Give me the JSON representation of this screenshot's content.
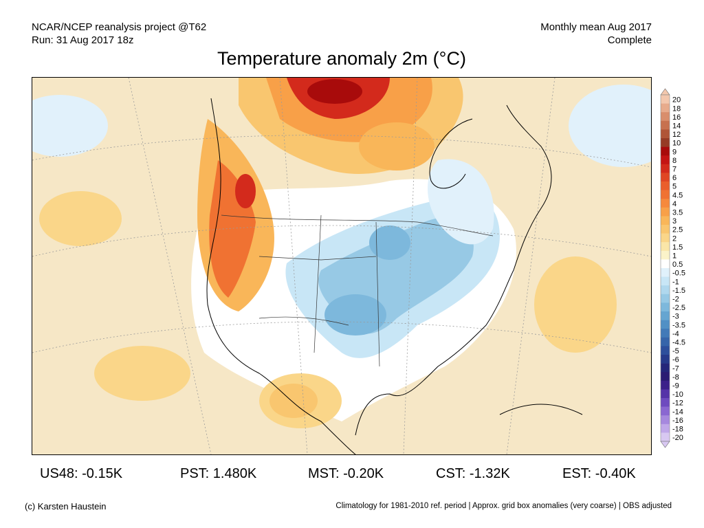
{
  "header": {
    "line1_left": "NCAR/NCEP reanalysis project @T62",
    "line2_left": "Run: 31 Aug 2017 18z",
    "line1_right": "Monthly mean Aug 2017",
    "line2_right": "Complete"
  },
  "title": "Temperature anomaly 2m (°C)",
  "colorbar": {
    "labels": [
      "20",
      "18",
      "16",
      "14",
      "12",
      "10",
      "9",
      "8",
      "7",
      "6",
      "5",
      "4.5",
      "4",
      "3.5",
      "3",
      "2.5",
      "2",
      "1.5",
      "1",
      "0.5",
      "-0.5",
      "-1",
      "-1.5",
      "-2",
      "-2.5",
      "-3",
      "-3.5",
      "-4",
      "-4.5",
      "-5",
      "-6",
      "-7",
      "-8",
      "-9",
      "-10",
      "-12",
      "-14",
      "-16",
      "-18",
      "-20"
    ],
    "colors": [
      "#f3c7ad",
      "#e7ab8c",
      "#d98e6c",
      "#c7714f",
      "#b05537",
      "#963b25",
      "#a80b0b",
      "#c41414",
      "#d32a1c",
      "#e04624",
      "#ea5e2c",
      "#f07232",
      "#f6893c",
      "#f8a048",
      "#f9b659",
      "#f9c66f",
      "#fad689",
      "#fae6a8",
      "#fbf3c9",
      "#ffffff",
      "#e0f1fb",
      "#c8e6f6",
      "#b0d8ee",
      "#97c9e5",
      "#7db8dc",
      "#65a5d1",
      "#5190c5",
      "#427ab8",
      "#3665aa",
      "#2d4f9c",
      "#263a8b",
      "#24267a",
      "#2a1b73",
      "#3c208a",
      "#5533a8",
      "#6e4bbf",
      "#8a67d1",
      "#a688de",
      "#c0a8e9",
      "#d8c8f2"
    ]
  },
  "regions": {
    "US48": "US48: -0.15K",
    "PST": "PST: 1.480K",
    "MST": "MST: -0.20K",
    "CST": "CST: -1.32K",
    "EST": "EST: -0.40K"
  },
  "footer": {
    "copyright": "(c) Karsten Haustein",
    "note": "Climatology for 1981-2010 ref. period | Approx. grid box anomalies (very coarse) | OBS adjusted"
  }
}
